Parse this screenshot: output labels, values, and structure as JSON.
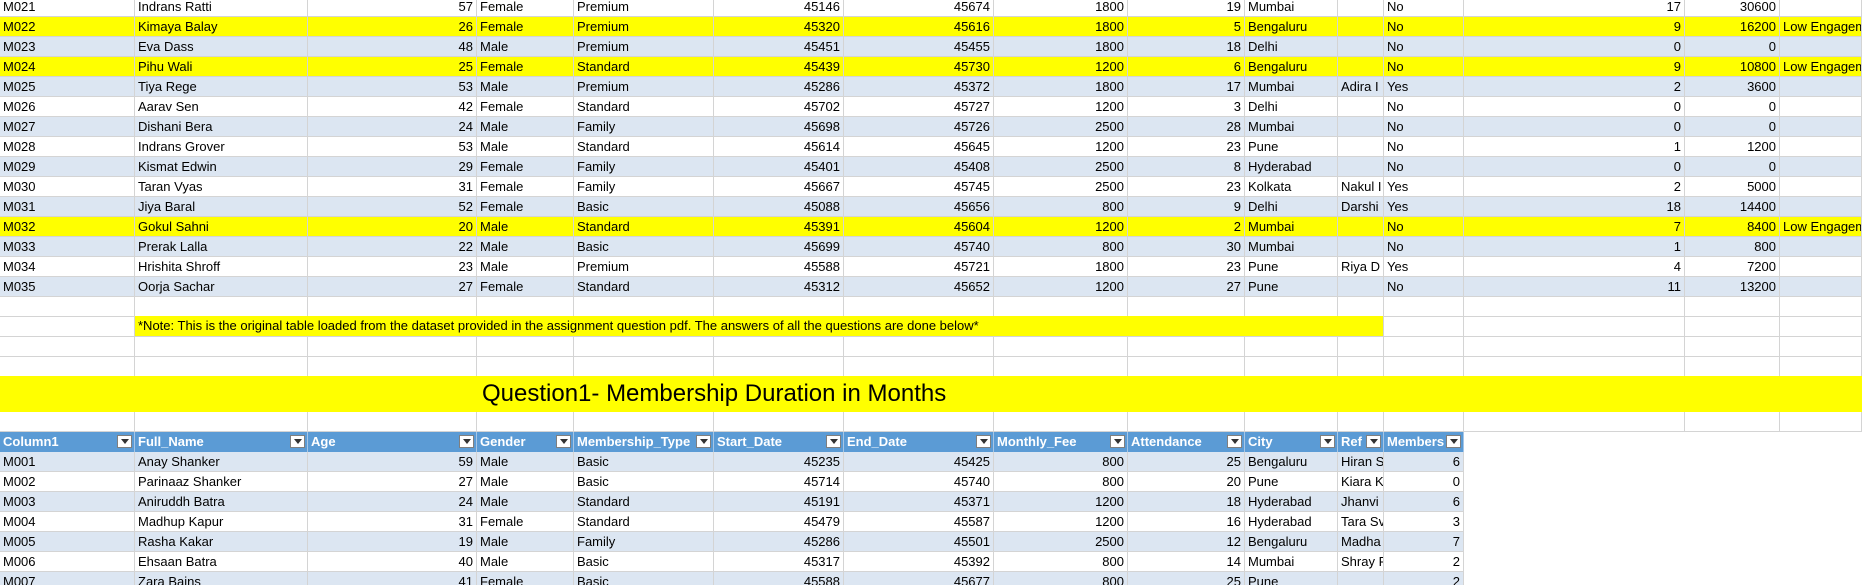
{
  "sheet": {
    "top_rows": [
      {
        "id": "M021",
        "name": "Indrans Ratti",
        "age": "57",
        "gender": "Female",
        "type": "Premium",
        "start": "45146",
        "end": "45674",
        "fee": "1800",
        "att": "19",
        "city": "Mumbai",
        "ref": "",
        "referred": "No",
        "a": "17",
        "b": "30600",
        "note": "",
        "style": "band-a"
      },
      {
        "id": "M022",
        "name": "Kimaya Balay",
        "age": "26",
        "gender": "Female",
        "type": "Premium",
        "start": "45320",
        "end": "45616",
        "fee": "1800",
        "att": "5",
        "city": "Bengaluru",
        "ref": "",
        "referred": "No",
        "a": "9",
        "b": "16200",
        "note": "Low Engagem",
        "style": "hl"
      },
      {
        "id": "M023",
        "name": "Eva Dass",
        "age": "48",
        "gender": "Male",
        "type": "Premium",
        "start": "45451",
        "end": "45455",
        "fee": "1800",
        "att": "18",
        "city": "Delhi",
        "ref": "",
        "referred": "No",
        "a": "0",
        "b": "0",
        "note": "",
        "style": "band-b"
      },
      {
        "id": "M024",
        "name": "Pihu Wali",
        "age": "25",
        "gender": "Female",
        "type": "Standard",
        "start": "45439",
        "end": "45730",
        "fee": "1200",
        "att": "6",
        "city": "Bengaluru",
        "ref": "",
        "referred": "No",
        "a": "9",
        "b": "10800",
        "note": "Low Engagem",
        "style": "hl"
      },
      {
        "id": "M025",
        "name": "Tiya Rege",
        "age": "53",
        "gender": "Male",
        "type": "Premium",
        "start": "45286",
        "end": "45372",
        "fee": "1800",
        "att": "17",
        "city": "Mumbai",
        "ref": "Adira I",
        "referred": "Yes",
        "a": "2",
        "b": "3600",
        "note": "",
        "style": "band-b"
      },
      {
        "id": "M026",
        "name": "Aarav Sen",
        "age": "42",
        "gender": "Female",
        "type": "Standard",
        "start": "45702",
        "end": "45727",
        "fee": "1200",
        "att": "3",
        "city": "Delhi",
        "ref": "",
        "referred": "No",
        "a": "0",
        "b": "0",
        "note": "",
        "style": "band-a"
      },
      {
        "id": "M027",
        "name": "Dishani Bera",
        "age": "24",
        "gender": "Male",
        "type": "Family",
        "start": "45698",
        "end": "45726",
        "fee": "2500",
        "att": "28",
        "city": "Mumbai",
        "ref": "",
        "referred": "No",
        "a": "0",
        "b": "0",
        "note": "",
        "style": "band-b"
      },
      {
        "id": "M028",
        "name": "Indrans Grover",
        "age": "53",
        "gender": "Male",
        "type": "Standard",
        "start": "45614",
        "end": "45645",
        "fee": "1200",
        "att": "23",
        "city": "Pune",
        "ref": "",
        "referred": "No",
        "a": "1",
        "b": "1200",
        "note": "",
        "style": "band-a"
      },
      {
        "id": "M029",
        "name": "Kismat Edwin",
        "age": "29",
        "gender": "Female",
        "type": "Family",
        "start": "45401",
        "end": "45408",
        "fee": "2500",
        "att": "8",
        "city": "Hyderabad",
        "ref": "",
        "referred": "No",
        "a": "0",
        "b": "0",
        "note": "",
        "style": "band-b"
      },
      {
        "id": "M030",
        "name": "Taran Vyas",
        "age": "31",
        "gender": "Female",
        "type": "Family",
        "start": "45667",
        "end": "45745",
        "fee": "2500",
        "att": "23",
        "city": "Kolkata",
        "ref": "Nakul I",
        "referred": "Yes",
        "a": "2",
        "b": "5000",
        "note": "",
        "style": "band-a"
      },
      {
        "id": "M031",
        "name": "Jiya Baral",
        "age": "52",
        "gender": "Female",
        "type": "Basic",
        "start": "45088",
        "end": "45656",
        "fee": "800",
        "att": "9",
        "city": "Delhi",
        "ref": "Darshi",
        "referred": "Yes",
        "a": "18",
        "b": "14400",
        "note": "",
        "style": "band-b"
      },
      {
        "id": "M032",
        "name": "Gokul Sahni",
        "age": "20",
        "gender": "Male",
        "type": "Standard",
        "start": "45391",
        "end": "45604",
        "fee": "1200",
        "att": "2",
        "city": "Mumbai",
        "ref": "",
        "referred": "No",
        "a": "7",
        "b": "8400",
        "note": "Low Engagem",
        "style": "hl"
      },
      {
        "id": "M033",
        "name": "Prerak Lalla",
        "age": "22",
        "gender": "Male",
        "type": "Basic",
        "start": "45699",
        "end": "45740",
        "fee": "800",
        "att": "30",
        "city": "Mumbai",
        "ref": "",
        "referred": "No",
        "a": "1",
        "b": "800",
        "note": "",
        "style": "band-b"
      },
      {
        "id": "M034",
        "name": "Hrishita Shroff",
        "age": "23",
        "gender": "Male",
        "type": "Premium",
        "start": "45588",
        "end": "45721",
        "fee": "1800",
        "att": "23",
        "city": "Pune",
        "ref": "Riya D",
        "referred": "Yes",
        "a": "4",
        "b": "7200",
        "note": "",
        "style": "band-a"
      },
      {
        "id": "M035",
        "name": "Oorja Sachar",
        "age": "27",
        "gender": "Female",
        "type": "Standard",
        "start": "45312",
        "end": "45652",
        "fee": "1200",
        "att": "27",
        "city": "Pune",
        "ref": "",
        "referred": "No",
        "a": "11",
        "b": "13200",
        "note": "",
        "style": "band-b"
      }
    ],
    "note_text": "*Note: This is the original table loaded from the dataset provided in the assignment question pdf. The answers of all the questions are done below*",
    "question_title": "Question1- Membership Duration in Months",
    "headers": [
      "Column1",
      "Full_Name",
      "Age",
      "Gender",
      "Membership_Type",
      "Start_Date",
      "End_Date",
      "Monthly_Fee",
      "Attendance",
      "City",
      "Ref",
      "Members"
    ],
    "bottom_rows": [
      {
        "id": "M001",
        "name": "Anay Shanker",
        "age": "59",
        "gender": "Male",
        "type": "Basic",
        "start": "45235",
        "end": "45425",
        "fee": "800",
        "att": "25",
        "city": "Bengaluru",
        "ref": "Hiran S",
        "m": "6",
        "style": "band-b"
      },
      {
        "id": "M002",
        "name": "Parinaaz Shanker",
        "age": "27",
        "gender": "Male",
        "type": "Basic",
        "start": "45714",
        "end": "45740",
        "fee": "800",
        "att": "20",
        "city": "Pune",
        "ref": "Kiara K",
        "m": "0",
        "style": "band-a"
      },
      {
        "id": "M003",
        "name": "Aniruddh Batra",
        "age": "24",
        "gender": "Male",
        "type": "Standard",
        "start": "45191",
        "end": "45371",
        "fee": "1200",
        "att": "18",
        "city": "Hyderabad",
        "ref": "Jhanvi",
        "m": "6",
        "style": "band-b"
      },
      {
        "id": "M004",
        "name": "Madhup Kapur",
        "age": "31",
        "gender": "Female",
        "type": "Standard",
        "start": "45479",
        "end": "45587",
        "fee": "1200",
        "att": "16",
        "city": "Hyderabad",
        "ref": "Tara Sv",
        "m": "3",
        "style": "band-a"
      },
      {
        "id": "M005",
        "name": "Rasha Kakar",
        "age": "19",
        "gender": "Male",
        "type": "Family",
        "start": "45286",
        "end": "45501",
        "fee": "2500",
        "att": "12",
        "city": "Bengaluru",
        "ref": "Madha",
        "m": "7",
        "style": "band-b"
      },
      {
        "id": "M006",
        "name": "Ehsaan Batra",
        "age": "40",
        "gender": "Male",
        "type": "Basic",
        "start": "45317",
        "end": "45392",
        "fee": "800",
        "att": "14",
        "city": "Mumbai",
        "ref": "Shray F",
        "m": "2",
        "style": "band-a"
      },
      {
        "id": "M007",
        "name": "Zara Bains",
        "age": "41",
        "gender": "Female",
        "type": "Basic",
        "start": "45588",
        "end": "45677",
        "fee": "800",
        "att": "25",
        "city": "Pune",
        "ref": "",
        "m": "2",
        "style": "band-b"
      }
    ]
  }
}
